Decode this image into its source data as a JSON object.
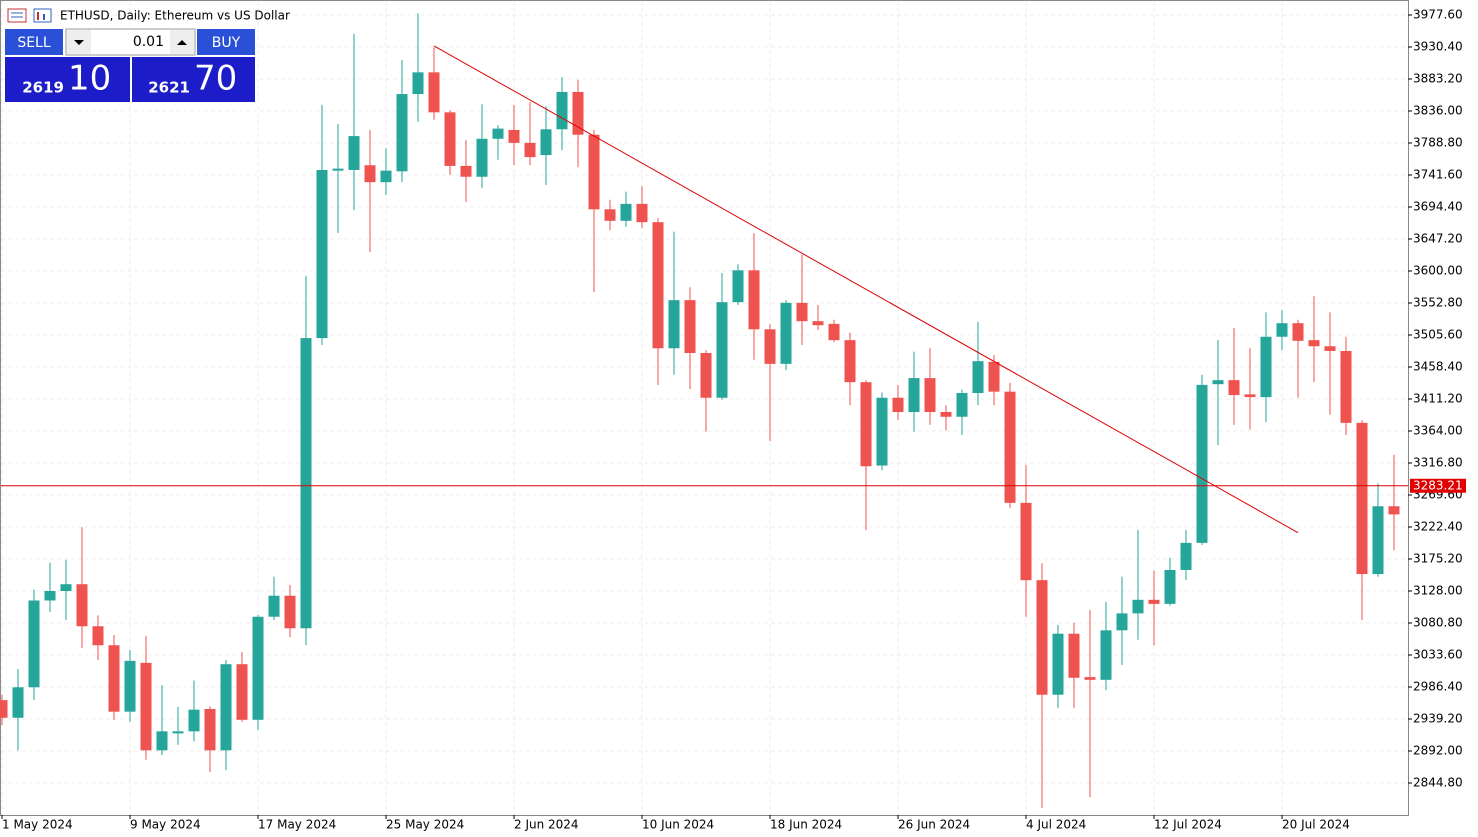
{
  "chart_data": {
    "type": "candlestick",
    "title": "ETHUSD, Daily:  Ethereum vs US Dollar",
    "up_color": "#26a69a",
    "down_color": "#ef5350",
    "grid": true,
    "categories": [
      "1 May 2024",
      null,
      null,
      null,
      null,
      null,
      null,
      null,
      "9 May 2024",
      null,
      null,
      null,
      null,
      null,
      null,
      null,
      "17 May 2024",
      null,
      null,
      null,
      null,
      null,
      null,
      null,
      "25 May 2024",
      null,
      null,
      null,
      null,
      null,
      null,
      null,
      "2 Jun 2024",
      null,
      null,
      null,
      null,
      null,
      null,
      null,
      "10 Jun 2024",
      null,
      null,
      null,
      null,
      null,
      null,
      null,
      "18 Jun 2024",
      null,
      null,
      null,
      null,
      null,
      null,
      null,
      "26 Jun 2024",
      null,
      null,
      null,
      null,
      null,
      null,
      null,
      "4 Jul 2024",
      null,
      null,
      null,
      null,
      null,
      null,
      null,
      "12 Jul 2024",
      null,
      null,
      null,
      null,
      null,
      null,
      null,
      "20 Jul 2024",
      null,
      null,
      null,
      null,
      null,
      null,
      null
    ],
    "open": [
      2967,
      2941,
      2986,
      3114,
      3128,
      3138,
      3076,
      3048,
      2950,
      3022,
      2893,
      2918,
      2921,
      2954,
      2893,
      3020,
      2938,
      3090,
      3121,
      3073,
      3501,
      3748,
      3749,
      3756,
      3731,
      3747,
      3861,
      3893,
      3834,
      3755,
      3739,
      3795,
      3808,
      3789,
      3771,
      3809,
      3864,
      3801,
      3691,
      3674,
      3699,
      3672,
      3486,
      3557,
      3479,
      3413,
      3554,
      3601,
      3514,
      3463,
      3553,
      3526,
      3522,
      3498,
      3436,
      3313,
      3413,
      3392,
      3442,
      3392,
      3385,
      3420,
      3466,
      3422,
      3258,
      3144,
      2975,
      3065,
      3001,
      2997,
      3070,
      3095,
      3115,
      3109,
      3159,
      3199,
      3433,
      3439,
      3418,
      3414,
      3503,
      3523,
      3498,
      3489,
      3482,
      3376,
      3153,
      3253
    ],
    "close": [
      2941,
      2986,
      3114,
      3128,
      3138,
      3076,
      3048,
      2950,
      3025,
      2893,
      2921,
      2921,
      2953,
      2893,
      3020,
      2938,
      3090,
      3121,
      3073,
      3501,
      3749,
      3751,
      3799,
      3731,
      3748,
      3861,
      3893,
      3834,
      3755,
      3739,
      3795,
      3810,
      3789,
      3768,
      3809,
      3864,
      3801,
      3691,
      3674,
      3699,
      3672,
      3486,
      3557,
      3479,
      3413,
      3554,
      3601,
      3514,
      3463,
      3553,
      3526,
      3520,
      3498,
      3436,
      3312,
      3413,
      3392,
      3442,
      3392,
      3385,
      3420,
      3467,
      3422,
      3258,
      3144,
      2975,
      3065,
      3000,
      2997,
      3070,
      3095,
      3115,
      3109,
      3159,
      3199,
      3432,
      3439,
      3417,
      3414,
      3503,
      3523,
      3497,
      3489,
      3482,
      3376,
      3153,
      3253,
      3241
    ],
    "high": [
      2975,
      3013,
      3130,
      3170,
      3174,
      3222,
      3092,
      3063,
      3041,
      3062,
      2989,
      2957,
      2996,
      2958,
      3026,
      3038,
      3093,
      3149,
      3137,
      3593,
      3845,
      3817,
      3950,
      3808,
      3781,
      3911,
      3980,
      3930,
      3837,
      3793,
      3846,
      3815,
      3845,
      3849,
      3843,
      3886,
      3882,
      3808,
      3705,
      3717,
      3725,
      3678,
      3658,
      3576,
      3483,
      3597,
      3610,
      3656,
      3522,
      3557,
      3624,
      3550,
      3528,
      3509,
      3439,
      3421,
      3432,
      3481,
      3486,
      3402,
      3425,
      3525,
      3476,
      3435,
      3314,
      3169,
      3078,
      3081,
      3100,
      3112,
      3149,
      3218,
      3158,
      3177,
      3218,
      3447,
      3498,
      3516,
      3486,
      3539,
      3542,
      3528,
      3563,
      3539,
      3503,
      3380,
      3287,
      3329
    ],
    "low": [
      2930,
      2893,
      2967,
      3097,
      3085,
      3044,
      3026,
      2938,
      2935,
      2879,
      2886,
      2901,
      2906,
      2861,
      2864,
      2935,
      2923,
      3085,
      3060,
      3048,
      3491,
      3656,
      3690,
      3628,
      3712,
      3731,
      3820,
      3823,
      3742,
      3702,
      3722,
      3764,
      3756,
      3756,
      3727,
      3778,
      3753,
      3569,
      3660,
      3665,
      3663,
      3432,
      3447,
      3426,
      3363,
      3410,
      3550,
      3469,
      3349,
      3454,
      3491,
      3513,
      3495,
      3402,
      3218,
      3306,
      3380,
      3363,
      3373,
      3365,
      3358,
      3402,
      3402,
      3250,
      3090,
      2808,
      2955,
      2955,
      2824,
      2982,
      3019,
      3056,
      3048,
      3106,
      3144,
      3196,
      3343,
      3373,
      3366,
      3377,
      3483,
      3413,
      3436,
      3388,
      3358,
      3085,
      3149,
      3188
    ],
    "ylim": [
      2797.6,
      3999.7
    ],
    "yticks": [
      {
        "value": 3977.6,
        "label": "3977.60"
      },
      {
        "value": 3930.4,
        "label": "3930.40"
      },
      {
        "value": 3883.2,
        "label": "3883.20"
      },
      {
        "value": 3836,
        "label": "3836.00"
      },
      {
        "value": 3788.8,
        "label": "3788.80"
      },
      {
        "value": 3741.6,
        "label": "3741.60"
      },
      {
        "value": 3694.4,
        "label": "3694.40"
      },
      {
        "value": 3647.2,
        "label": "3647.20"
      },
      {
        "value": 3600,
        "label": "3600.00"
      },
      {
        "value": 3552.8,
        "label": "3552.80"
      },
      {
        "value": 3505.6,
        "label": "3505.60"
      },
      {
        "value": 3458.4,
        "label": "3458.40"
      },
      {
        "value": 3411.2,
        "label": "3411.20"
      },
      {
        "value": 3364,
        "label": "3364.00"
      },
      {
        "value": 3316.8,
        "label": "3316.80"
      },
      {
        "value": 3269.6,
        "label": "3269.60"
      },
      {
        "value": 3222.4,
        "label": "3222.40"
      },
      {
        "value": 3175.2,
        "label": "3175.20"
      },
      {
        "value": 3128,
        "label": "3128.00"
      },
      {
        "value": 3080.8,
        "label": "3080.80"
      },
      {
        "value": 3033.6,
        "label": "3033.60"
      },
      {
        "value": 2986.4,
        "label": "2986.40"
      },
      {
        "value": 2939.2,
        "label": "2939.20"
      },
      {
        "value": 2892,
        "label": "2892.00"
      },
      {
        "value": 2844.8,
        "label": "2844.80"
      }
    ],
    "last_price": 3283.21,
    "last_price_color": "#e00000",
    "trendline": {
      "x": [
        27,
        81
      ],
      "y": [
        3932,
        3214
      ],
      "color": "#e00000"
    }
  },
  "trade_panel": {
    "sell": "SELL",
    "buy": "BUY",
    "volume": "0.01",
    "bid_big": "2619",
    "bid_small": "10",
    "ask_big": "2621",
    "ask_small": "70"
  }
}
